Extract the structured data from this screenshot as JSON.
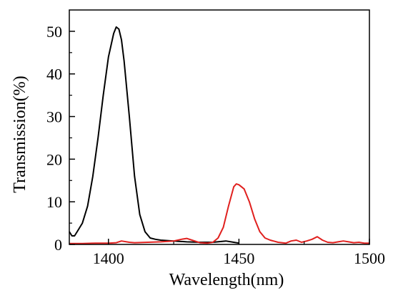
{
  "chart_data": {
    "type": "line",
    "title": "",
    "xlabel": "Wavelength(nm)",
    "ylabel": "Transmission(%)",
    "xlim": [
      1385,
      1500
    ],
    "ylim": [
      0,
      55
    ],
    "x_ticks": [
      1400,
      1450,
      1500
    ],
    "y_ticks": [
      0,
      10,
      20,
      30,
      40,
      50
    ],
    "x_tick_labels": [
      "1400",
      "1450",
      "1500"
    ],
    "y_tick_labels": [
      "0",
      "10",
      "20",
      "30",
      "40",
      "50"
    ],
    "grid": false,
    "legend": "none",
    "series": [
      {
        "color": "#000000",
        "points": [
          [
            1385,
            3.0
          ],
          [
            1386,
            2.0
          ],
          [
            1387,
            2.0
          ],
          [
            1388,
            3.0
          ],
          [
            1390,
            5.0
          ],
          [
            1392,
            9.0
          ],
          [
            1394,
            16.0
          ],
          [
            1396,
            25.0
          ],
          [
            1398,
            35.0
          ],
          [
            1400,
            44.0
          ],
          [
            1402,
            49.5
          ],
          [
            1403,
            51.0
          ],
          [
            1404,
            50.5
          ],
          [
            1405,
            48.0
          ],
          [
            1406,
            43.0
          ],
          [
            1408,
            30.0
          ],
          [
            1410,
            16.0
          ],
          [
            1412,
            7.0
          ],
          [
            1414,
            3.0
          ],
          [
            1416,
            1.5
          ],
          [
            1418,
            1.2
          ],
          [
            1420,
            1.0
          ],
          [
            1425,
            0.8
          ],
          [
            1430,
            0.6
          ],
          [
            1435,
            0.5
          ],
          [
            1440,
            0.5
          ],
          [
            1445,
            0.8
          ],
          [
            1448,
            0.5
          ],
          [
            1450,
            0.3
          ]
        ]
      },
      {
        "color": "#e0201e",
        "points": [
          [
            1385,
            0.2
          ],
          [
            1390,
            0.2
          ],
          [
            1395,
            0.3
          ],
          [
            1400,
            0.3
          ],
          [
            1403,
            0.4
          ],
          [
            1405,
            0.8
          ],
          [
            1408,
            0.5
          ],
          [
            1410,
            0.4
          ],
          [
            1415,
            0.5
          ],
          [
            1420,
            0.6
          ],
          [
            1425,
            0.8
          ],
          [
            1428,
            1.2
          ],
          [
            1430,
            1.4
          ],
          [
            1432,
            1.0
          ],
          [
            1435,
            0.4
          ],
          [
            1438,
            0.3
          ],
          [
            1440,
            0.5
          ],
          [
            1442,
            1.5
          ],
          [
            1444,
            4.0
          ],
          [
            1446,
            9.0
          ],
          [
            1448,
            13.5
          ],
          [
            1449,
            14.2
          ],
          [
            1450,
            14.0
          ],
          [
            1452,
            13.0
          ],
          [
            1454,
            10.0
          ],
          [
            1456,
            6.0
          ],
          [
            1458,
            3.0
          ],
          [
            1460,
            1.5
          ],
          [
            1462,
            1.0
          ],
          [
            1465,
            0.5
          ],
          [
            1468,
            0.3
          ],
          [
            1470,
            0.8
          ],
          [
            1472,
            1.0
          ],
          [
            1474,
            0.5
          ],
          [
            1476,
            0.8
          ],
          [
            1478,
            1.2
          ],
          [
            1480,
            1.8
          ],
          [
            1482,
            1.0
          ],
          [
            1484,
            0.5
          ],
          [
            1486,
            0.4
          ],
          [
            1488,
            0.6
          ],
          [
            1490,
            0.8
          ],
          [
            1492,
            0.6
          ],
          [
            1494,
            0.4
          ],
          [
            1496,
            0.5
          ],
          [
            1498,
            0.3
          ],
          [
            1500,
            0.3
          ]
        ]
      }
    ]
  }
}
